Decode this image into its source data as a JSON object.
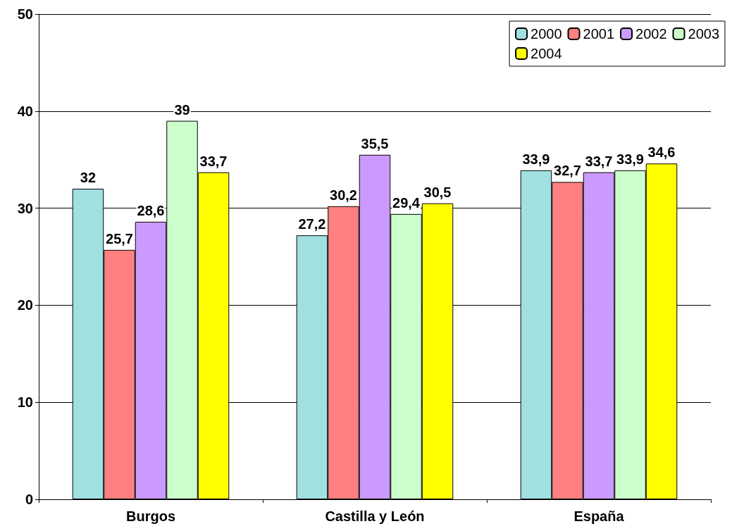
{
  "chart_data": {
    "type": "bar",
    "categories": [
      "Burgos",
      "Castilla y León",
      "España"
    ],
    "series": [
      {
        "name": "2000",
        "color": "#a0e0e0",
        "values": [
          32,
          27.2,
          33.9
        ],
        "value_labels": [
          "32",
          "27,2",
          "33,9"
        ]
      },
      {
        "name": "2001",
        "color": "#ff8080",
        "values": [
          25.7,
          30.2,
          32.7
        ],
        "value_labels": [
          "25,7",
          "30,2",
          "32,7"
        ]
      },
      {
        "name": "2002",
        "color": "#cc99ff",
        "values": [
          28.6,
          35.5,
          33.7
        ],
        "value_labels": [
          "28,6",
          "35,5",
          "33,7"
        ]
      },
      {
        "name": "2003",
        "color": "#ccffcc",
        "values": [
          39,
          29.4,
          33.9
        ],
        "value_labels": [
          "39",
          "29,4",
          "33,9"
        ]
      },
      {
        "name": "2004",
        "color": "#ffff00",
        "values": [
          33.7,
          30.5,
          34.6
        ],
        "value_labels": [
          "33,7",
          "30,5",
          "34,6"
        ]
      }
    ],
    "ylim": [
      0,
      50
    ],
    "yticks": [
      0,
      10,
      20,
      30,
      40,
      50
    ],
    "grid": "y",
    "legend": "top right"
  }
}
